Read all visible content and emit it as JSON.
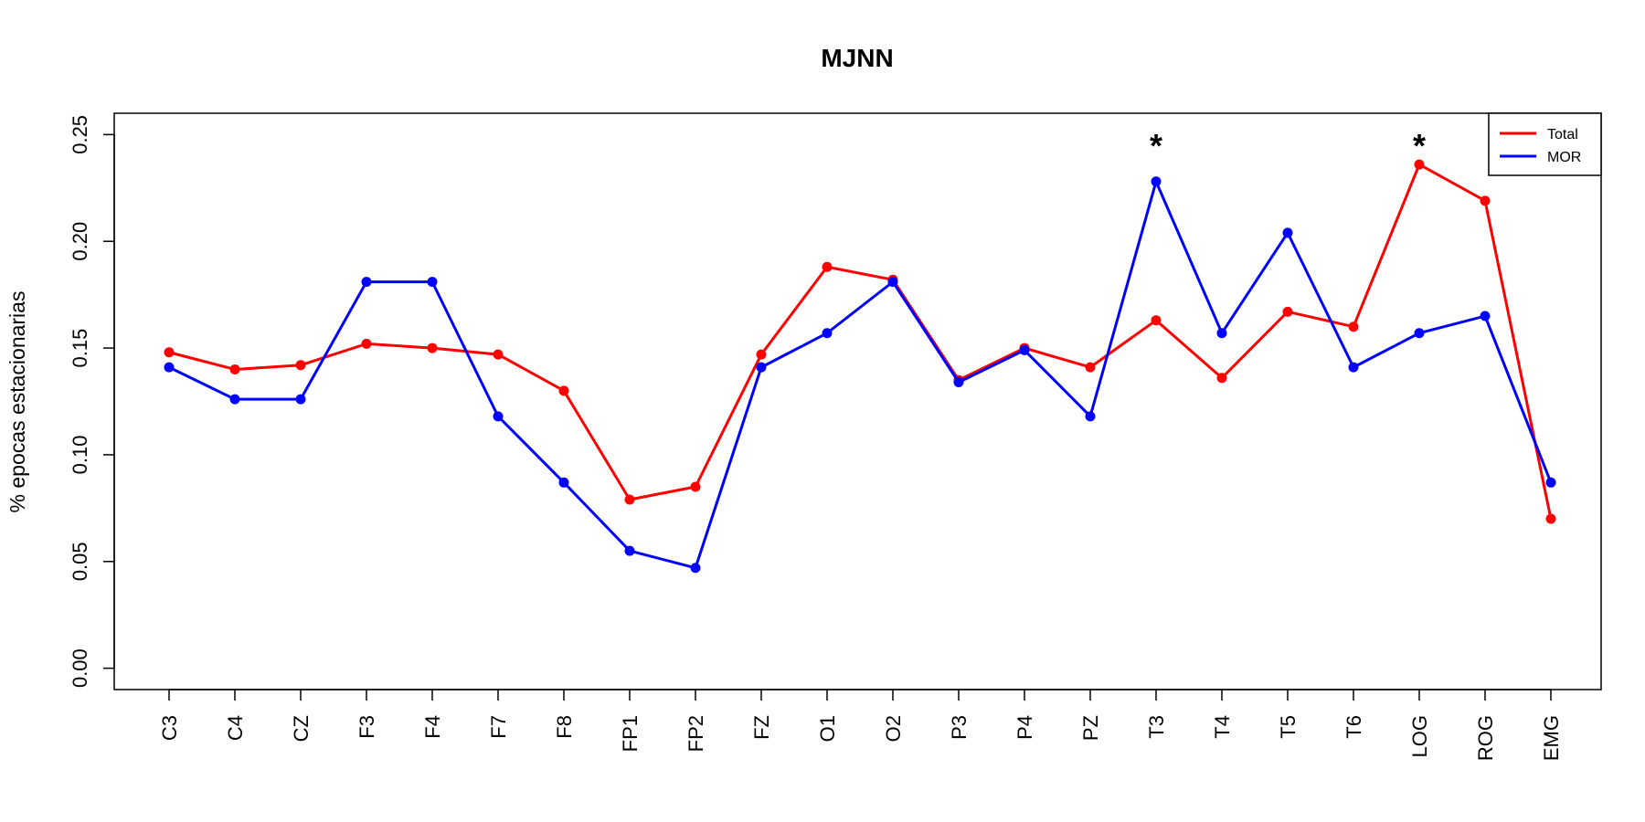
{
  "chart_data": {
    "type": "line",
    "title": "MJNN",
    "xlabel": "",
    "ylabel": "% epocas estacionarias",
    "ylim": [
      -0.01,
      0.26
    ],
    "yticks": [
      "0.00",
      "0.05",
      "0.10",
      "0.15",
      "0.20",
      "0.25"
    ],
    "categories": [
      "C3",
      "C4",
      "CZ",
      "F3",
      "F4",
      "F7",
      "F8",
      "FP1",
      "FP2",
      "FZ",
      "O1",
      "O2",
      "P3",
      "P4",
      "PZ",
      "T3",
      "T4",
      "T5",
      "T6",
      "LOG",
      "ROG",
      "EMG"
    ],
    "series": [
      {
        "name": "Total",
        "color": "#ff0000",
        "values": [
          0.148,
          0.14,
          0.142,
          0.152,
          0.15,
          0.147,
          0.13,
          0.079,
          0.085,
          0.147,
          0.188,
          0.182,
          0.135,
          0.15,
          0.141,
          0.163,
          0.136,
          0.167,
          0.16,
          0.236,
          0.219,
          0.07
        ]
      },
      {
        "name": "MOR",
        "color": "#0000ff",
        "values": [
          0.141,
          0.126,
          0.126,
          0.181,
          0.181,
          0.118,
          0.087,
          0.055,
          0.047,
          0.141,
          0.157,
          0.181,
          0.134,
          0.149,
          0.118,
          0.228,
          0.157,
          0.204,
          0.141,
          0.157,
          0.165,
          0.087
        ]
      }
    ],
    "annotations": [
      {
        "text": "*",
        "category": "T3",
        "y": 0.248
      },
      {
        "text": "*",
        "category": "LOG",
        "y": 0.248
      }
    ],
    "grid": false,
    "legend": "top-right"
  }
}
